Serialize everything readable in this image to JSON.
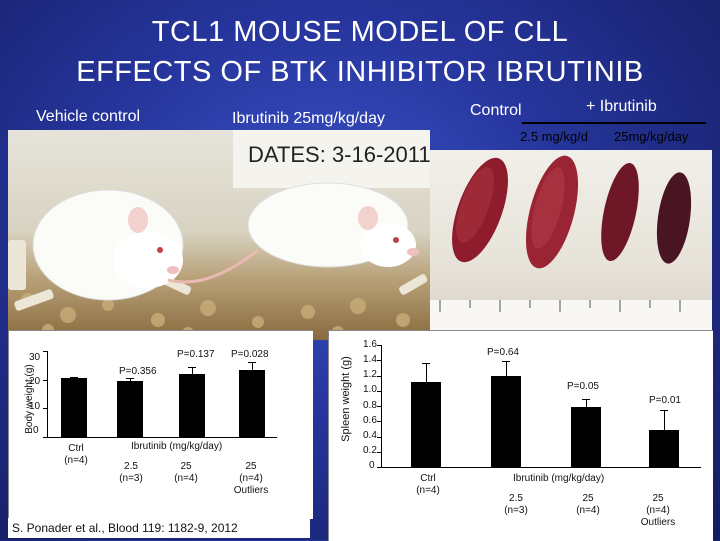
{
  "title": {
    "line1": "TCL1 MOUSE MODEL OF CLL",
    "line2": "EFFECTS OF BTK INHIBITOR IBRUTINIB"
  },
  "photo_labels": {
    "vehicle": "Vehicle control",
    "ibrutinib": "Ibrutinib 25mg/kg/day",
    "control": "Control",
    "plus_ibrutinib": "+ Ibrutinib",
    "dose_low": "2.5 mg/kg/d",
    "dose_high": "25mg/kg/day",
    "cage_card": "DATES: 3-16-2011"
  },
  "body_chart": {
    "ylabel": "Body weight (g)",
    "yticks": [
      "30",
      "20",
      "10",
      "0"
    ],
    "pvalues": [
      "P=0.356",
      "P=0.137",
      "P=0.028"
    ],
    "group_label": "Ibrutinib (mg/kg/day)",
    "groups": [
      {
        "line1": "Ctrl",
        "line2": "(n=4)",
        "line3": ""
      },
      {
        "line1": "2.5",
        "line2": "(n=3)",
        "line3": ""
      },
      {
        "line1": "25",
        "line2": "(n=4)",
        "line3": ""
      },
      {
        "line1": "25",
        "line2": "(n=4)",
        "line3": "Outliers"
      }
    ]
  },
  "spleen_chart": {
    "ylabel": "Spleen weight (g)",
    "yticks": [
      "1.6",
      "1.4",
      "1.2",
      "1.0",
      "0.8",
      "0.6",
      "0.4",
      "0.2",
      "0"
    ],
    "pvalues": [
      "P=0.64",
      "P=0.05",
      "P=0.01"
    ],
    "group_label": "Ibrutinib (mg/kg/day)",
    "groups": [
      {
        "line1": "Ctrl",
        "line2": "(n=4)",
        "line3": ""
      },
      {
        "line1": "2.5",
        "line2": "(n=3)",
        "line3": ""
      },
      {
        "line1": "25",
        "line2": "(n=4)",
        "line3": ""
      },
      {
        "line1": "25",
        "line2": "(n=4)",
        "line3": "Outliers"
      }
    ]
  },
  "chart_data": [
    {
      "type": "bar",
      "ylabel": "Body weight (g)",
      "ylim": [
        0,
        30
      ],
      "categories": [
        "Ctrl",
        "2.5",
        "25",
        "25 Outliers"
      ],
      "values": [
        20.5,
        19.5,
        22,
        23.5
      ],
      "errors": [
        0.5,
        1,
        2.5,
        2.5
      ],
      "grid": false
    },
    {
      "type": "bar",
      "ylabel": "Spleen weight (g)",
      "ylim": [
        0,
        1.6
      ],
      "categories": [
        "Ctrl",
        "2.5",
        "25",
        "25 Outliers"
      ],
      "values": [
        1.12,
        1.19,
        0.79,
        0.48
      ],
      "errors": [
        0.25,
        0.2,
        0.1,
        0.27
      ],
      "grid": false
    }
  ],
  "citation": "S. Ponader et al., Blood 119: 1182-9, 2012"
}
